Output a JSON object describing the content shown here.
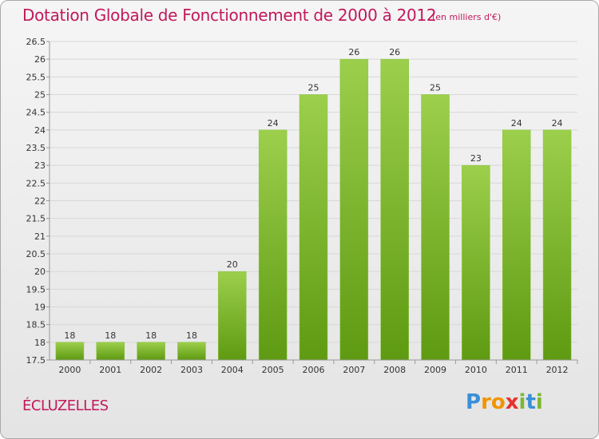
{
  "title": "Dotation Globale de Fonctionnement de 2000 à 2012",
  "unit_note": "(en milliers d'€)",
  "commune": "ÉCLUZELLES",
  "brand": {
    "letters": [
      {
        "char": "P",
        "color": "#3a8fd8"
      },
      {
        "char": "r",
        "color": "#f29400"
      },
      {
        "char": "o",
        "color": "#f29400"
      },
      {
        "char": "x",
        "color": "#e8302a"
      },
      {
        "char": "i",
        "color": "#7cb82f"
      },
      {
        "char": "t",
        "color": "#3a8fd8"
      },
      {
        "char": "i",
        "color": "#7cb82f"
      }
    ]
  },
  "colors": {
    "accent": "#c2185b",
    "bar_top": "#9ccf4c",
    "bar_bottom": "#5e9a12",
    "grid": "#d8d8d8",
    "axis": "#999999",
    "text": "#333333"
  },
  "chart_data": {
    "type": "bar",
    "categories": [
      "2000",
      "2001",
      "2002",
      "2003",
      "2004",
      "2005",
      "2006",
      "2007",
      "2008",
      "2009",
      "2010",
      "2011",
      "2012"
    ],
    "values": [
      18,
      18,
      18,
      18,
      20,
      24,
      25,
      26,
      26,
      25,
      23,
      24,
      24
    ],
    "value_labels": [
      "18",
      "18",
      "18",
      "18",
      "20",
      "24",
      "25",
      "26",
      "26",
      "25",
      "23",
      "24",
      "24"
    ],
    "ylim": [
      17.5,
      26.5
    ],
    "yticks": [
      17.5,
      18,
      18.5,
      19,
      19.5,
      20,
      20.5,
      21,
      21.5,
      22,
      22.5,
      23,
      23.5,
      24,
      24.5,
      25,
      25.5,
      26,
      26.5
    ],
    "ytick_labels": [
      "17.5",
      "18",
      "18.5",
      "19",
      "19.5",
      "20",
      "20.5",
      "21",
      "21.5",
      "22",
      "22.5",
      "23",
      "23.5",
      "24",
      "24.5",
      "25",
      "25.5",
      "26",
      "26.5"
    ],
    "grid": true,
    "legend": "none"
  }
}
